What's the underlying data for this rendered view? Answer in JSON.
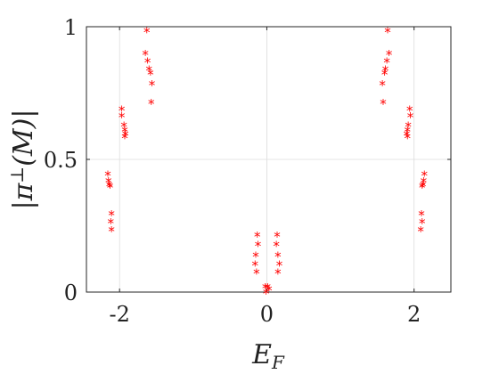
{
  "chart_data": {
    "type": "scatter",
    "title": "",
    "xlabel": "E_F",
    "ylabel": "|π⊥(M)|",
    "xlim": [
      -2.45,
      2.5
    ],
    "ylim": [
      0,
      1
    ],
    "grid": true,
    "legend": "none",
    "marker": "*",
    "marker_color": "#ff0000",
    "xticks": [
      {
        "value": -2,
        "label": "-2"
      },
      {
        "value": 0,
        "label": "0"
      },
      {
        "value": 2,
        "label": "2"
      }
    ],
    "yticks": [
      {
        "value": 0,
        "label": "0"
      },
      {
        "value": 0.5,
        "label": "0.5"
      },
      {
        "value": 1,
        "label": "1"
      }
    ],
    "series": [
      {
        "points": [
          {
            "x": -2.16,
            "y": 0.445
          },
          {
            "x": -2.15,
            "y": 0.42
          },
          {
            "x": -2.14,
            "y": 0.405
          },
          {
            "x": -2.13,
            "y": 0.4
          },
          {
            "x": -2.11,
            "y": 0.295
          },
          {
            "x": -2.12,
            "y": 0.265
          },
          {
            "x": -2.11,
            "y": 0.235
          },
          {
            "x": -1.97,
            "y": 0.69
          },
          {
            "x": -1.97,
            "y": 0.665
          },
          {
            "x": -1.94,
            "y": 0.63
          },
          {
            "x": -1.93,
            "y": 0.61
          },
          {
            "x": -1.92,
            "y": 0.595
          },
          {
            "x": -1.93,
            "y": 0.585
          },
          {
            "x": -1.63,
            "y": 0.985
          },
          {
            "x": -1.65,
            "y": 0.9
          },
          {
            "x": -1.62,
            "y": 0.87
          },
          {
            "x": -1.6,
            "y": 0.84
          },
          {
            "x": -1.58,
            "y": 0.825
          },
          {
            "x": -1.56,
            "y": 0.785
          },
          {
            "x": -1.57,
            "y": 0.715
          },
          {
            "x": -0.13,
            "y": 0.215
          },
          {
            "x": -0.12,
            "y": 0.18
          },
          {
            "x": -0.15,
            "y": 0.14
          },
          {
            "x": -0.16,
            "y": 0.105
          },
          {
            "x": -0.14,
            "y": 0.075
          },
          {
            "x": -0.02,
            "y": 0.02
          },
          {
            "x": -0.01,
            "y": 0.0
          },
          {
            "x": 0.01,
            "y": 0.02
          },
          {
            "x": 0.03,
            "y": 0.012
          },
          {
            "x": 0.14,
            "y": 0.215
          },
          {
            "x": 0.13,
            "y": 0.18
          },
          {
            "x": 0.15,
            "y": 0.14
          },
          {
            "x": 0.17,
            "y": 0.105
          },
          {
            "x": 0.15,
            "y": 0.075
          },
          {
            "x": 1.64,
            "y": 0.985
          },
          {
            "x": 1.66,
            "y": 0.9
          },
          {
            "x": 1.63,
            "y": 0.87
          },
          {
            "x": 1.61,
            "y": 0.84
          },
          {
            "x": 1.6,
            "y": 0.825
          },
          {
            "x": 1.57,
            "y": 0.785
          },
          {
            "x": 1.58,
            "y": 0.715
          },
          {
            "x": 1.94,
            "y": 0.69
          },
          {
            "x": 1.95,
            "y": 0.665
          },
          {
            "x": 1.92,
            "y": 0.63
          },
          {
            "x": 1.91,
            "y": 0.61
          },
          {
            "x": 1.9,
            "y": 0.595
          },
          {
            "x": 1.91,
            "y": 0.585
          },
          {
            "x": 2.14,
            "y": 0.445
          },
          {
            "x": 2.13,
            "y": 0.42
          },
          {
            "x": 2.12,
            "y": 0.405
          },
          {
            "x": 2.11,
            "y": 0.4
          },
          {
            "x": 2.1,
            "y": 0.295
          },
          {
            "x": 2.11,
            "y": 0.265
          },
          {
            "x": 2.09,
            "y": 0.235
          }
        ]
      }
    ]
  }
}
